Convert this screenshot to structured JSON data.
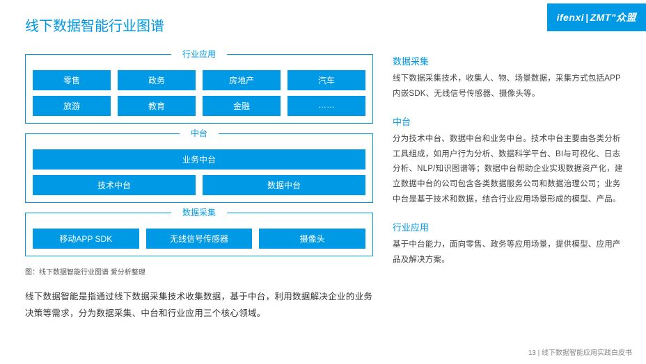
{
  "colors": {
    "accent": "#0099e5",
    "text": "#333333",
    "muted": "#888888",
    "white": "#ffffff"
  },
  "title": "线下数据智能行业图谱",
  "logo": {
    "left": "ifenxi",
    "sep": "|",
    "right": "ZMT\"众盟"
  },
  "diagram": {
    "groups": [
      {
        "label": "行业应用",
        "rows": [
          [
            "零售",
            "政务",
            "房地产",
            "汽车"
          ],
          [
            "旅游",
            "教育",
            "金融",
            "……"
          ]
        ]
      },
      {
        "label": "中台",
        "rows": [
          [
            "业务中台"
          ],
          [
            "技术中台",
            "数据中台"
          ]
        ]
      },
      {
        "label": "数据采集",
        "rows": [
          [
            "移动APP SDK",
            "无线信号传感器",
            "摄像头"
          ]
        ]
      }
    ],
    "caption": "图：线下数据智能行业图谱  爱分析整理"
  },
  "left_body": "线下数据智能是指通过线下数据采集技术收集数据，基于中台，利用数据解决企业的业务决策等需求，分为数据采集、中台和行业应用三个核心领域。",
  "sections": [
    {
      "heading": "数据采集",
      "body": "线下数据采集技术，收集人、物、场景数据，采集方式包括APP内嵌SDK、无线信号传感器、摄像头等。"
    },
    {
      "heading": "中台",
      "body": "分为技术中台、数据中台和业务中台。技术中台主要由各类分析工具组成，如用户行为分析、数据科学平台、BI与可视化、日志分析、NLP/知识图谱等；数据中台帮助企业实现数据资产化，建立数据中台的公司包含各类数据服务公司和数据治理公司；业务中台是基于技术和数据，结合行业应用场景形成的模型、产品。"
    },
    {
      "heading": "行业应用",
      "body": "基于中台能力，面向零售、政务等应用场景，提供模型、应用产品及解决方案。"
    }
  ],
  "footer": "13 | 线下数据智能应用实践白皮书"
}
